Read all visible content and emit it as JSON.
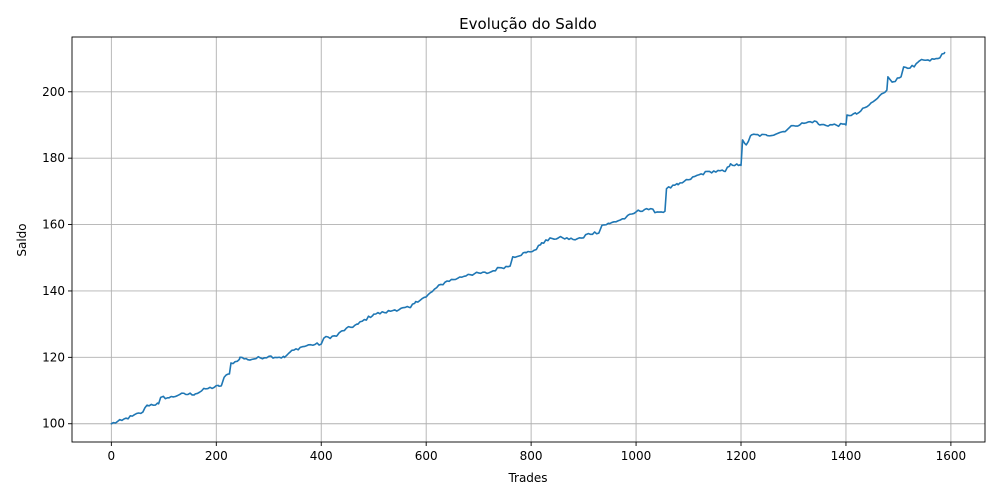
{
  "chart_data": {
    "type": "line",
    "title": "Evolução do Saldo",
    "xlabel": "Trades",
    "ylabel": "Saldo",
    "xlim": [
      -75,
      1665
    ],
    "ylim": [
      94.5,
      216.5
    ],
    "x_ticks": [
      0,
      200,
      400,
      600,
      800,
      1000,
      1200,
      1400,
      1600
    ],
    "y_ticks": [
      100,
      120,
      140,
      160,
      180,
      200
    ],
    "x_tick_labels": [
      "0",
      "200",
      "400",
      "600",
      "800",
      "1000",
      "1200",
      "1400",
      "1600"
    ],
    "y_tick_labels": [
      "100",
      "120",
      "140",
      "160",
      "180",
      "200"
    ],
    "grid": true,
    "legend": "none",
    "series": [
      {
        "color": "#1f77b4",
        "points": [
          [
            0,
            100.0
          ],
          [
            20,
            101.0
          ],
          [
            40,
            102.3
          ],
          [
            60,
            103.5
          ],
          [
            68,
            105.6
          ],
          [
            90,
            106.0
          ],
          [
            95,
            108.0
          ],
          [
            110,
            107.8
          ],
          [
            130,
            108.8
          ],
          [
            160,
            109.0
          ],
          [
            180,
            110.5
          ],
          [
            205,
            111.3
          ],
          [
            210,
            111.6
          ],
          [
            215,
            114.0
          ],
          [
            225,
            115.0
          ],
          [
            228,
            118.3
          ],
          [
            240,
            118.8
          ],
          [
            245,
            120.0
          ],
          [
            260,
            119.3
          ],
          [
            300,
            120.3
          ],
          [
            330,
            120.0
          ],
          [
            340,
            121.5
          ],
          [
            360,
            123.0
          ],
          [
            380,
            123.8
          ],
          [
            400,
            124.0
          ],
          [
            405,
            125.8
          ],
          [
            430,
            126.5
          ],
          [
            440,
            128.0
          ],
          [
            470,
            130.0
          ],
          [
            500,
            133.0
          ],
          [
            520,
            133.5
          ],
          [
            540,
            134.3
          ],
          [
            570,
            135.0
          ],
          [
            580,
            136.8
          ],
          [
            600,
            138.2
          ],
          [
            620,
            141.0
          ],
          [
            640,
            143.0
          ],
          [
            660,
            143.8
          ],
          [
            680,
            145.0
          ],
          [
            720,
            145.5
          ],
          [
            740,
            147.0
          ],
          [
            760,
            147.5
          ],
          [
            765,
            150.3
          ],
          [
            790,
            151.5
          ],
          [
            810,
            152.5
          ],
          [
            820,
            154.5
          ],
          [
            840,
            155.8
          ],
          [
            860,
            156.0
          ],
          [
            880,
            155.5
          ],
          [
            900,
            156.0
          ],
          [
            905,
            157.0
          ],
          [
            930,
            157.8
          ],
          [
            935,
            159.8
          ],
          [
            950,
            160.3
          ],
          [
            980,
            162.0
          ],
          [
            1000,
            163.8
          ],
          [
            1020,
            164.8
          ],
          [
            1040,
            163.8
          ],
          [
            1055,
            164.0
          ],
          [
            1058,
            170.8
          ],
          [
            1080,
            172.0
          ],
          [
            1100,
            173.5
          ],
          [
            1120,
            175.0
          ],
          [
            1140,
            176.0
          ],
          [
            1170,
            176.0
          ],
          [
            1180,
            178.3
          ],
          [
            1195,
            177.8
          ],
          [
            1200,
            177.8
          ],
          [
            1203,
            185.5
          ],
          [
            1210,
            184.0
          ],
          [
            1220,
            187.0
          ],
          [
            1250,
            186.8
          ],
          [
            1280,
            188.0
          ],
          [
            1300,
            189.8
          ],
          [
            1320,
            190.5
          ],
          [
            1340,
            191.2
          ],
          [
            1350,
            190.0
          ],
          [
            1400,
            190.0
          ],
          [
            1402,
            193.0
          ],
          [
            1420,
            193.3
          ],
          [
            1440,
            195.5
          ],
          [
            1460,
            198.0
          ],
          [
            1470,
            199.5
          ],
          [
            1478,
            200.5
          ],
          [
            1480,
            204.5
          ],
          [
            1490,
            203.0
          ],
          [
            1505,
            204.5
          ],
          [
            1510,
            207.5
          ],
          [
            1530,
            207.5
          ],
          [
            1540,
            209.3
          ],
          [
            1560,
            209.3
          ],
          [
            1575,
            210.0
          ],
          [
            1588,
            211.8
          ]
        ]
      }
    ]
  }
}
